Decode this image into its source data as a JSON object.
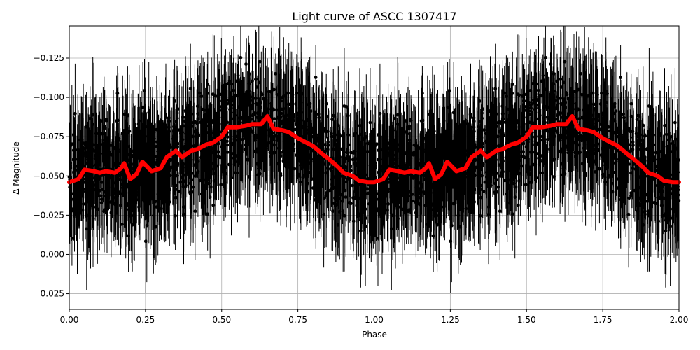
{
  "chart_data": {
    "type": "scatter",
    "title": "Light curve of ASCC 1307417",
    "xlabel": "Phase",
    "ylabel": "Δ Magnitude",
    "xlim": [
      0.0,
      2.0
    ],
    "ylim": [
      0.035,
      -0.1455
    ],
    "y_inverted": true,
    "grid": true,
    "legend": null,
    "x_ticks": [
      0.0,
      0.25,
      0.5,
      0.75,
      1.0,
      1.25,
      1.5,
      1.75,
      2.0
    ],
    "x_tick_labels": [
      "0.00",
      "0.25",
      "0.50",
      "0.75",
      "1.00",
      "1.25",
      "1.50",
      "1.75",
      "2.00"
    ],
    "y_ticks": [
      -0.125,
      -0.1,
      -0.075,
      -0.05,
      -0.025,
      0.0,
      0.025
    ],
    "y_tick_labels": [
      "−0.125",
      "−0.100",
      "−0.075",
      "−0.050",
      "−0.025",
      "0.000",
      "0.025"
    ],
    "series": [
      {
        "name": "observations (errorbar)",
        "kind": "errorbar",
        "color": "#000000",
        "description": "Dense phase-folded photometry with large error bars, scatter centered near -0.05 with spread roughly -0.14 to +0.035, repeated over two cycles"
      },
      {
        "name": "binned mean",
        "kind": "line",
        "color": "#ff0000",
        "phase": [
          0.0,
          0.03,
          0.05,
          0.08,
          0.1,
          0.12,
          0.15,
          0.17,
          0.18,
          0.2,
          0.22,
          0.24,
          0.27,
          0.3,
          0.32,
          0.35,
          0.37,
          0.4,
          0.42,
          0.45,
          0.47,
          0.5,
          0.52,
          0.55,
          0.58,
          0.6,
          0.63,
          0.65,
          0.67,
          0.7,
          0.72,
          0.75,
          0.78,
          0.8,
          0.83,
          0.85,
          0.88,
          0.9,
          0.93,
          0.95,
          0.98,
          1.0
        ],
        "delta_mag": [
          -0.046,
          -0.048,
          -0.054,
          -0.053,
          -0.052,
          -0.053,
          -0.052,
          -0.055,
          -0.058,
          -0.048,
          -0.051,
          -0.059,
          -0.053,
          -0.055,
          -0.062,
          -0.066,
          -0.062,
          -0.066,
          -0.067,
          -0.07,
          -0.071,
          -0.075,
          -0.081,
          -0.081,
          -0.082,
          -0.083,
          -0.083,
          -0.088,
          -0.08,
          -0.079,
          -0.078,
          -0.074,
          -0.071,
          -0.069,
          -0.064,
          -0.061,
          -0.056,
          -0.052,
          -0.05,
          -0.047,
          -0.046,
          -0.046
        ],
        "repeats_with_period": 1.0
      }
    ]
  }
}
